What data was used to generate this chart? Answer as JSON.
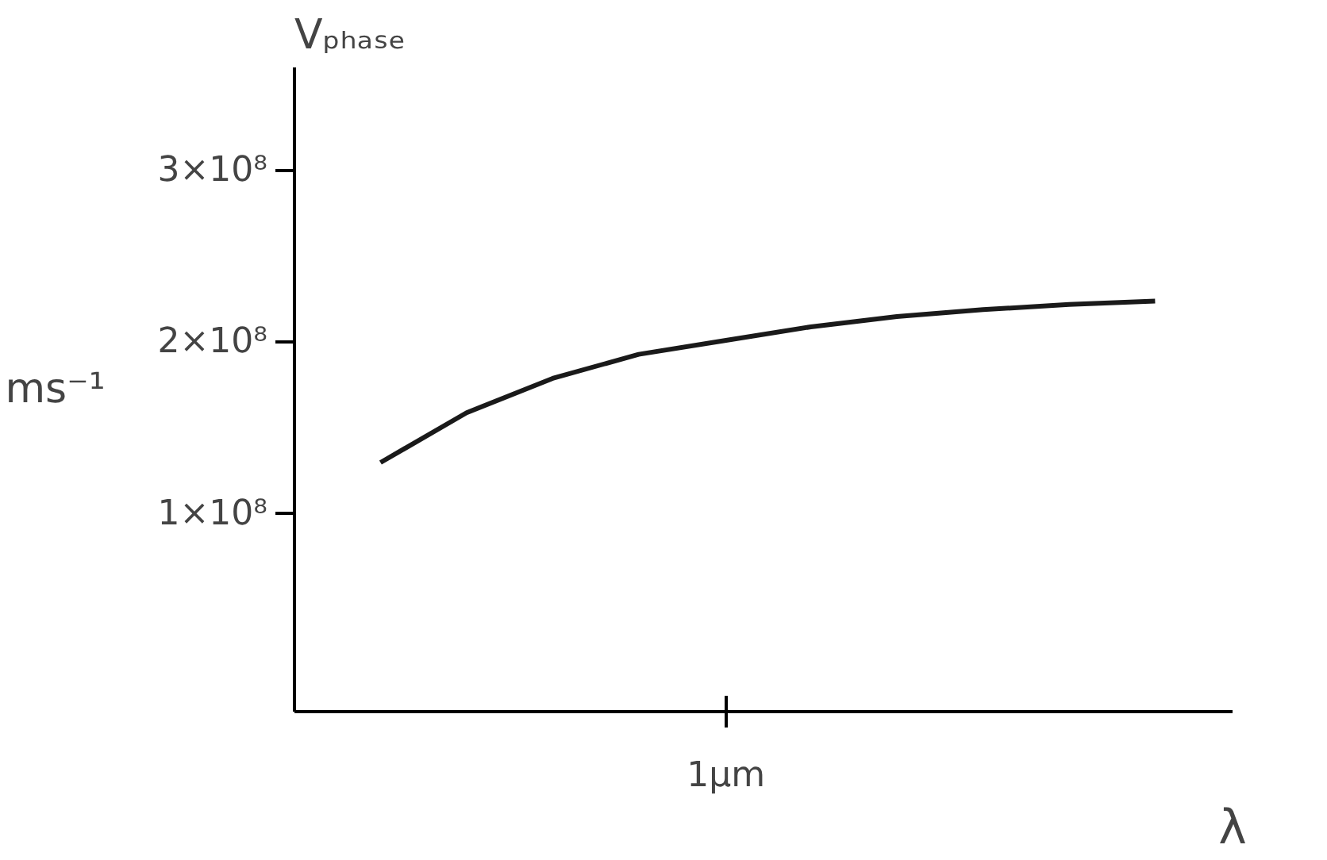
{
  "chart_data": {
    "type": "line",
    "title": "Vₚₕₐₛₑ",
    "xlabel": "λ",
    "ylabel": "ms⁻¹",
    "annotations": [
      "1μm"
    ],
    "categories": [
      null,
      null,
      null,
      null,
      null,
      null,
      null,
      null,
      null,
      null
    ],
    "series": [
      {
        "color": "#1a1a1a",
        "values": [
          130000000,
          159000000,
          179000000,
          193000000,
          201000000,
          209000000,
          215000000,
          219000000,
          222000000,
          224000000
        ]
      }
    ],
    "ylim": [
      -15000000,
      360000000
    ],
    "yticks": [
      {
        "value": 100000000,
        "label": "1×10⁸"
      },
      {
        "value": 200000000,
        "label": "2×10⁸"
      },
      {
        "value": 300000000,
        "label": "3×10⁸"
      }
    ],
    "grid": false,
    "marker": "none",
    "line_style": "solid"
  }
}
